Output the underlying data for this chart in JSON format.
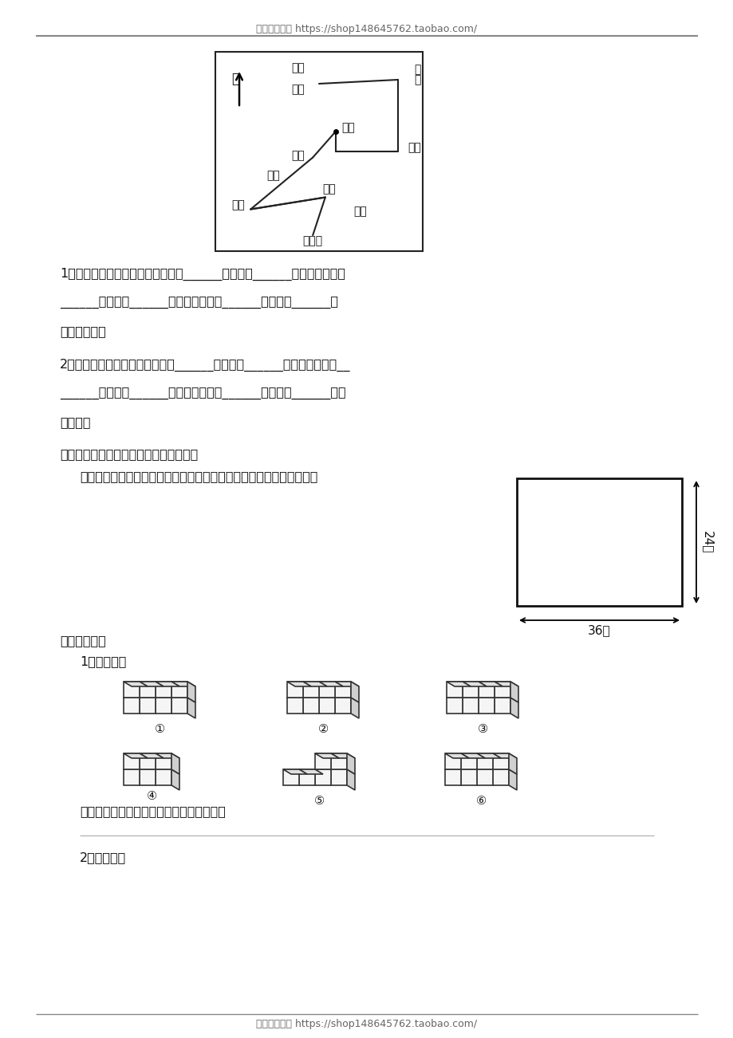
{
  "header_text": "北京名校教育 https://shop148645762.taobao.com/",
  "footer_text": "北京名校教育 https://shop148645762.taobao.com/",
  "bg_color": "#ffffff",
  "section4_line1": "1、从广场到文明小区的路线是：向______方向行驶______站到剧院，再向",
  "section4_line2": "______方向行驶______站到公园，再向______方向行驶______站",
  "section4_line3": "到文明小区。",
  "section4_line4": "2、从广场到火车站的路线是：向______方向行驶______站到金山，再向__",
  "section4_line5": "______方向行驶______站到高山，再向______方向行驶______站到",
  "section4_line6": "火车站。",
  "section5_title": "五、李大爷用铁丝网围了如右图的羊圈。",
  "section5_sub": "用同样长的铁丝网，你能不能围成面积更大的羊圈，它的面积是多少？",
  "rect_width_label": "36米",
  "rect_height_label": "24米",
  "section6_title": "六、填空题。",
  "section6_sub1": "1、填图号。",
  "section6_q": "上图哪些物体从正面和侧面看图形都一样？",
  "section7_title": "2、填空题。",
  "cube_labels": [
    "①",
    "②",
    "③",
    "④",
    "⑤",
    "⑥"
  ]
}
